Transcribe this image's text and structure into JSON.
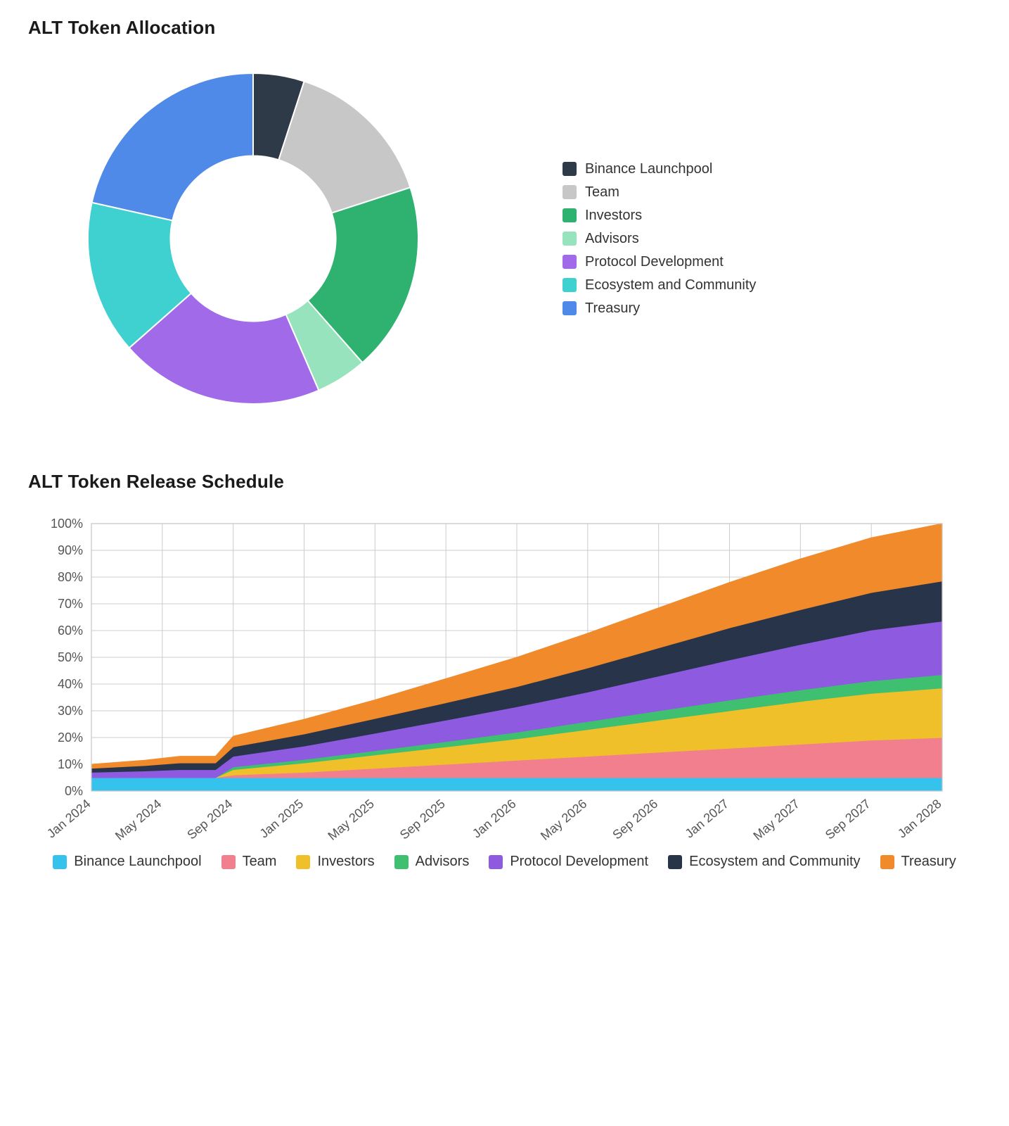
{
  "allocation": {
    "title": "ALT Token Allocation",
    "type": "donut",
    "background_color": "#ffffff",
    "inner_radius_ratio": 0.5,
    "title_fontsize": 26,
    "series": [
      {
        "label": "Binance Launchpool",
        "value": 5,
        "color": "#2f3a48"
      },
      {
        "label": "Team",
        "value": 15,
        "color": "#c7c7c7"
      },
      {
        "label": "Investors",
        "value": 18.5,
        "color": "#2fb170"
      },
      {
        "label": "Advisors",
        "value": 5,
        "color": "#97e3bd"
      },
      {
        "label": "Protocol Development",
        "value": 20,
        "color": "#a06ae8"
      },
      {
        "label": "Ecosystem and Community",
        "value": 15,
        "color": "#3fd0d0"
      },
      {
        "label": "Treasury",
        "value": 21.5,
        "color": "#4f8ae8"
      }
    ]
  },
  "release": {
    "title": "ALT Token Release Schedule",
    "type": "stacked-area",
    "title_fontsize": 26,
    "background_color": "#ffffff",
    "grid_color": "#cccccc",
    "axis_font_size": 18,
    "ylim": [
      0,
      100
    ],
    "ytick_step": 10,
    "ytick_suffix": "%",
    "x_labels": [
      "Jan 2024",
      "May 2024",
      "Sep 2024",
      "Jan 2025",
      "May 2025",
      "Sep 2025",
      "Jan 2026",
      "May 2026",
      "Sep 2026",
      "Jan 2027",
      "May 2027",
      "Sep 2027",
      "Jan 2028"
    ],
    "sample_x": [
      0,
      3,
      5,
      6,
      7,
      8,
      12,
      16,
      20,
      24,
      28,
      32,
      36,
      40,
      44,
      48
    ],
    "series": [
      {
        "label": "Binance Launchpool",
        "color": "#35c3ee",
        "values": [
          5,
          5,
          5,
          5,
          5,
          5,
          5,
          5,
          5,
          5,
          5,
          5,
          5,
          5,
          5,
          5
        ]
      },
      {
        "label": "Team",
        "color": "#f27f8d",
        "values": [
          0,
          0,
          0,
          0,
          0,
          1,
          2,
          3.5,
          5,
          6.5,
          8,
          9.5,
          11,
          12.5,
          14,
          15
        ]
      },
      {
        "label": "Investors",
        "color": "#f0c02b",
        "values": [
          0,
          0,
          0,
          0,
          0,
          2,
          3.5,
          5,
          6.5,
          8,
          10,
          12,
          14,
          16,
          17.5,
          18.5
        ]
      },
      {
        "label": "Advisors",
        "color": "#3fbf70",
        "values": [
          0,
          0,
          0,
          0,
          0,
          1,
          1.3,
          1.6,
          2,
          2.5,
          3,
          3.5,
          4,
          4.3,
          4.7,
          5
        ]
      },
      {
        "label": "Protocol Development",
        "color": "#8d5ae0",
        "values": [
          2,
          2.5,
          3,
          3,
          3,
          4,
          5,
          6.5,
          8,
          9.5,
          11,
          13,
          15,
          17,
          19,
          20
        ]
      },
      {
        "label": "Ecosystem and Community",
        "color": "#27344a",
        "values": [
          1.5,
          2,
          2.5,
          2.5,
          2.5,
          3.5,
          4.5,
          5.5,
          6.5,
          7.5,
          9,
          10.5,
          12,
          13,
          14,
          15
        ]
      },
      {
        "label": "Treasury",
        "color": "#f08a2a",
        "values": [
          1.5,
          2,
          2.5,
          2.5,
          2.5,
          4,
          5.5,
          7,
          9,
          11,
          13,
          15,
          17,
          19,
          20.5,
          21.5
        ]
      }
    ],
    "tick_label_color": "#555555",
    "x_label_rotation_deg": -40
  }
}
